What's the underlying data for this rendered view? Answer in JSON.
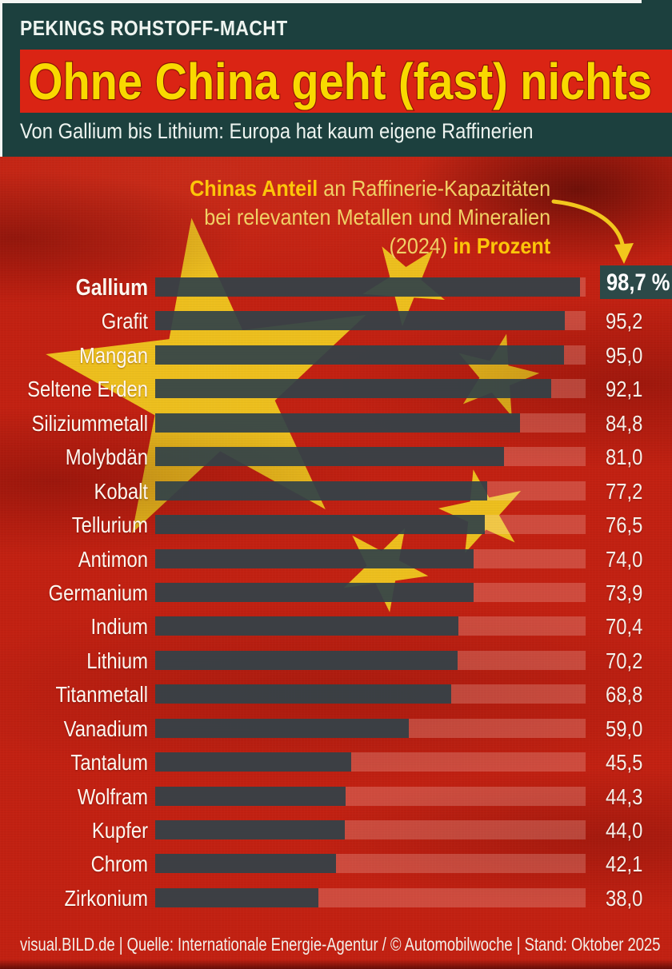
{
  "header": {
    "kicker": "PEKINGS ROHSTOFF-MACHT",
    "headline": "Ohne China geht (fast) nichts",
    "subtitle": "Von Gallium bis Lithium: Europa hat kaum eigene Raffinerien"
  },
  "annotation": {
    "line1_bold": "Chinas Anteil",
    "line1_rest": " an Raffinerie-Kapazitäten",
    "line2": "bei relevanten Metallen und Mineralien",
    "line3_regular": "(2024) ",
    "line3_bold": "in Prozent"
  },
  "chart_data": {
    "type": "bar",
    "orientation": "horizontal",
    "title": "Chinas Anteil an Raffinerie-Kapazitäten bei relevanten Metallen und Mineralien (2024) in Prozent",
    "unit": "Prozent",
    "year": "2024",
    "xlim": [
      0,
      100
    ],
    "categories": [
      "Gallium",
      "Grafit",
      "Mangan",
      "Seltene Erden",
      "Siliziummetall",
      "Molybdän",
      "Kobalt",
      "Tellurium",
      "Antimon",
      "Germanium",
      "Indium",
      "Lithium",
      "Titanmetall",
      "Vanadium",
      "Tantalum",
      "Wolfram",
      "Kupfer",
      "Chrom",
      "Zirkonium"
    ],
    "values": [
      98.7,
      95.2,
      95.0,
      92.1,
      84.8,
      81.0,
      77.2,
      76.5,
      74.0,
      73.9,
      70.4,
      70.2,
      68.8,
      59.0,
      45.5,
      44.3,
      44.0,
      42.1,
      38.0
    ],
    "value_labels": [
      "98,7 %",
      "95,2",
      "95,0",
      "92,1",
      "84,8",
      "81,0",
      "77,2",
      "76,5",
      "74,0",
      "73,9",
      "70,4",
      "70,2",
      "68,8",
      "59,0",
      "45,5",
      "44,3",
      "44,0",
      "42,1",
      "38,0"
    ],
    "grid": false,
    "legend": false
  },
  "footer": {
    "text": "visual.BILD.de | Quelle: Internationale Energie-Agentur / © Automobilwoche | Stand: Oktober 2025"
  },
  "colors": {
    "header_teal": "#1c403e",
    "banner_red": "#da2414",
    "headline_yellow": "#f9d900",
    "flag_red": "#c22112",
    "star_yellow": "#edbf1e",
    "bar_dark": "#2c3e45",
    "value_box_teal": "#2c4948",
    "annotation_gold": "#fcc50a",
    "text_white": "#f6efe8"
  }
}
